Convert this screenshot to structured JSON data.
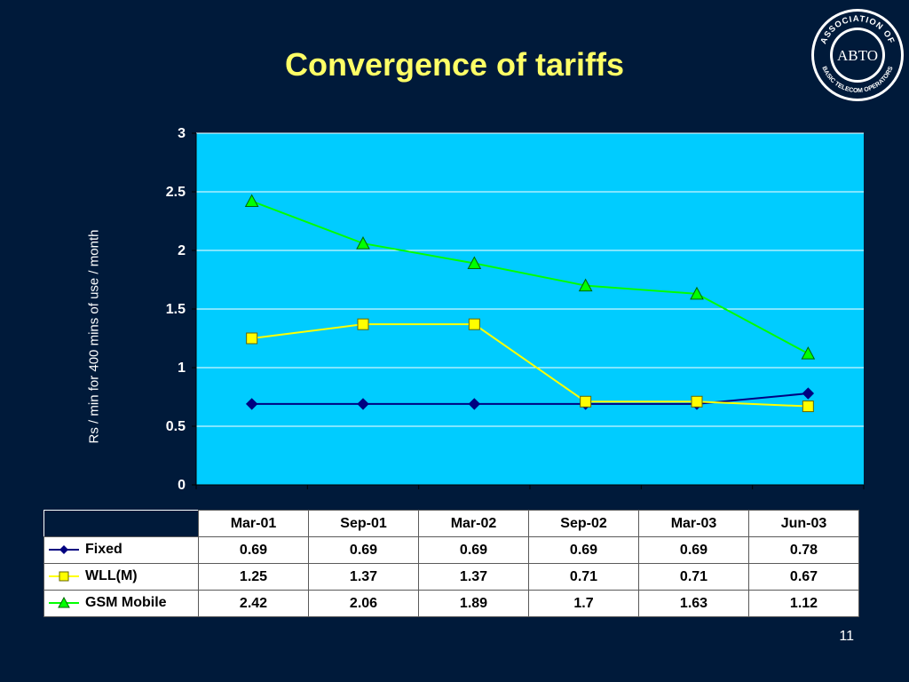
{
  "slide": {
    "title": "Convergence of tariffs",
    "page_number": "11",
    "logo": {
      "center_text": "ABTO",
      "ring_text_top": "ASSOCIATION OF",
      "ring_text_bottom": "BASIC TELECOM OPERATORS"
    }
  },
  "colors": {
    "background": "#001a3a",
    "title": "#ffff66",
    "plot_area": "#00ccff",
    "fixed": "#000080",
    "wll": "#ffff00",
    "gsm": "#00ff00"
  },
  "chart_data": {
    "type": "line",
    "title": "",
    "xlabel": "",
    "ylabel": "Rs / min for 400 mins of use / month",
    "ylim": [
      0,
      3
    ],
    "yticks": [
      "0",
      "0.5",
      "1",
      "1.5",
      "2",
      "2.5",
      "3"
    ],
    "grid": "horizontal",
    "legend": "data-table",
    "categories": [
      "Mar-01",
      "Sep-01",
      "Mar-02",
      "Sep-02",
      "Mar-03",
      "Jun-03"
    ],
    "series": [
      {
        "name": "Fixed",
        "values": [
          0.69,
          0.69,
          0.69,
          0.69,
          0.69,
          0.78
        ],
        "display": [
          "0.69",
          "0.69",
          "0.69",
          "0.69",
          "0.69",
          "0.78"
        ],
        "marker": "diamond",
        "color": "#000080"
      },
      {
        "name": "WLL(M)",
        "values": [
          1.25,
          1.37,
          1.37,
          0.71,
          0.71,
          0.67
        ],
        "display": [
          "1.25",
          "1.37",
          "1.37",
          "0.71",
          "0.71",
          "0.67"
        ],
        "marker": "square",
        "color": "#ffff00"
      },
      {
        "name": "GSM Mobile",
        "values": [
          2.42,
          2.06,
          1.89,
          1.7,
          1.63,
          1.12
        ],
        "display": [
          "2.42",
          "2.06",
          "1.89",
          "1.7",
          "1.63",
          "1.12"
        ],
        "marker": "triangle",
        "color": "#00ff00"
      }
    ]
  }
}
